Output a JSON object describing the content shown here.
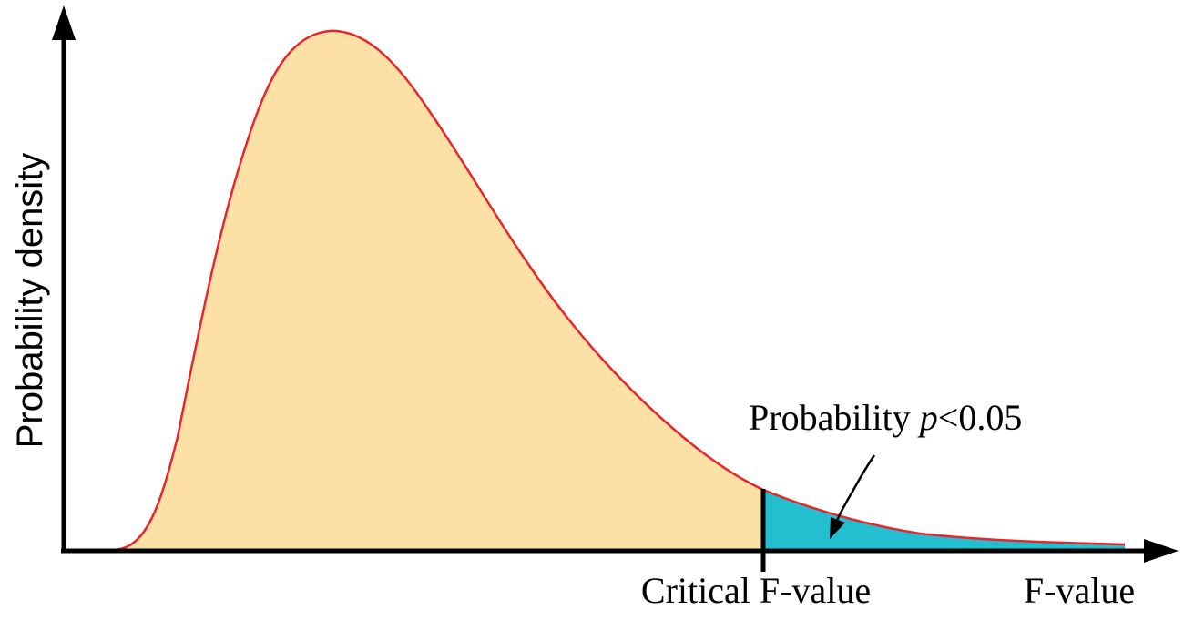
{
  "labels": {
    "y_axis": "Probability density",
    "x_axis": "F-value",
    "critical": "Critical F-value",
    "annotation_prefix": "Probability ",
    "annotation_variable": "p",
    "annotation_suffix": "<0.05"
  },
  "colors": {
    "body_fill": "#fde0a6",
    "tail_fill": "#23bfd1",
    "curve_stroke": "#e8262a",
    "axis": "#000000"
  }
}
